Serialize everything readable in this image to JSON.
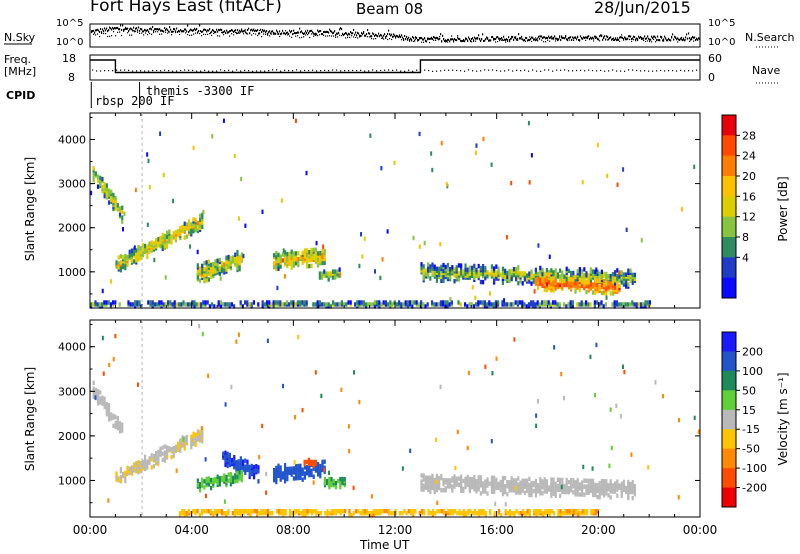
{
  "header": {
    "title": "Fort Hays East (fitACF)",
    "beam": "Beam 08",
    "date": "28/Jun/2015"
  },
  "top_panels": {
    "nsky_label": "N.Sky",
    "nsky_ticks": [
      "10^5",
      "10^0"
    ],
    "nsearch_label": "N.Search",
    "nsearch_ticks": [
      "10^5",
      "10^0"
    ],
    "freq_label": [
      "Freq.",
      "[MHz]"
    ],
    "freq_ticks": [
      "18",
      "8"
    ],
    "nave_label": "Nave",
    "nave_ticks": [
      "60",
      "0"
    ],
    "cpid_label": "CPID",
    "cpid_segments": [
      "rbsp 200 IF",
      "themis -3300 IF"
    ]
  },
  "axes": {
    "y_label": "Slant Range [km]",
    "y_ticks": [
      "4000",
      "3000",
      "2000",
      "1000"
    ],
    "x_ticks": [
      "00:00",
      "04:00",
      "08:00",
      "12:00",
      "16:00",
      "20:00",
      "00:00"
    ],
    "x_label": "Time UT"
  },
  "colorbars": {
    "power": {
      "label": "Power [dB]",
      "ticks": [
        "28",
        "24",
        "20",
        "16",
        "12",
        "8",
        "4"
      ],
      "colors": [
        "#e8000b",
        "#ff4a00",
        "#ff7e00",
        "#ffc000",
        "#dccf00",
        "#87c440",
        "#2e8c60",
        "#1e3cc8",
        "#0a0aff"
      ]
    },
    "velocity": {
      "label": "Velocity [m s⁻¹]",
      "ticks": [
        "200",
        "100",
        "50",
        "15",
        "-15",
        "-50",
        "-100",
        "-200"
      ],
      "colors": [
        "#1a1aff",
        "#2255cc",
        "#1d8a5a",
        "#5fd037",
        "#b9b9b9",
        "#ffc400",
        "#ff8a00",
        "#ff4d00",
        "#ee0000"
      ]
    }
  },
  "chart_data": [
    {
      "type": "line",
      "title": "N.Sky / N.Search",
      "x": [
        0,
        1,
        2,
        4,
        6,
        8,
        10,
        12,
        13,
        16,
        20,
        22,
        24
      ],
      "series": [
        {
          "name": "N.Sky",
          "values": [
            3.5,
            4.2,
            4.0,
            3.8,
            3.6,
            3.4,
            3.2,
            2.5,
            1.8,
            2.0,
            2.2,
            2.1,
            2.0
          ]
        },
        {
          "name": "N.Search",
          "values": [
            2.5,
            3.0,
            3.2,
            3.0,
            2.8,
            2.6,
            2.4,
            2.0,
            1.5,
            1.6,
            1.8,
            1.7,
            1.6
          ]
        }
      ],
      "ylim": [
        0,
        5
      ],
      "xlim": [
        0,
        24
      ]
    },
    {
      "type": "line",
      "title": "Freq. / Nave",
      "series": [
        {
          "name": "Freq.",
          "x": [
            0,
            1,
            1,
            13,
            13,
            24
          ],
          "values": [
            16,
            16,
            11,
            11,
            16,
            16
          ]
        },
        {
          "name": "Nave",
          "x": [
            0,
            24
          ],
          "values": [
            24,
            24
          ]
        }
      ],
      "ylim_freq": [
        8,
        18
      ],
      "ylim_nave": [
        0,
        60
      ],
      "xlim": [
        0,
        24
      ]
    },
    {
      "type": "heatmap",
      "title": "Power [dB]",
      "xlabel": "Time UT",
      "ylabel": "Slant Range [km]",
      "xlim": [
        0,
        24
      ],
      "ylim": [
        180,
        4600
      ],
      "clim": [
        0,
        30
      ],
      "features": [
        {
          "t0": 0.1,
          "t1": 1.3,
          "r0": 3300,
          "r1": 2300,
          "width": 350,
          "value": 15,
          "spread": 5
        },
        {
          "t0": 1.0,
          "t1": 4.4,
          "r0": 1200,
          "r1": 2200,
          "width": 330,
          "value": 17,
          "spread": 6
        },
        {
          "t0": 4.2,
          "t1": 6.0,
          "r0": 1000,
          "r1": 1350,
          "width": 420,
          "value": 16,
          "spread": 6
        },
        {
          "t0": 7.2,
          "t1": 9.2,
          "r0": 1300,
          "r1": 1400,
          "width": 380,
          "value": 18,
          "spread": 6
        },
        {
          "t0": 9.0,
          "t1": 9.8,
          "r0": 1000,
          "r1": 1000,
          "width": 250,
          "value": 12,
          "spread": 4
        },
        {
          "t0": 13.0,
          "t1": 21.4,
          "r0": 1050,
          "r1": 900,
          "width": 380,
          "value": 13,
          "spread": 6
        },
        {
          "t0": 17.5,
          "t1": 20.8,
          "r0": 800,
          "r1": 700,
          "width": 300,
          "value": 24,
          "spread": 4
        },
        {
          "t0": 0.0,
          "t1": 22.0,
          "r0": 320,
          "r1": 320,
          "width": 110,
          "value": 10,
          "spread": 6
        }
      ]
    },
    {
      "type": "heatmap",
      "title": "Velocity [m s⁻¹]",
      "xlabel": "Time UT",
      "ylabel": "Slant Range [km]",
      "xlim": [
        0,
        24
      ],
      "ylim": [
        180,
        4600
      ],
      "clim": [
        -200,
        200
      ],
      "features": [
        {
          "t0": 0.1,
          "t1": 1.3,
          "r0": 3100,
          "r1": 2100,
          "width": 350,
          "value": 0,
          "spread": 10
        },
        {
          "t0": 1.0,
          "t1": 4.4,
          "r0": 1100,
          "r1": 2100,
          "width": 330,
          "value": -10,
          "spread": 15
        },
        {
          "t0": 5.2,
          "t1": 6.6,
          "r0": 1600,
          "r1": 1200,
          "width": 350,
          "value": 180,
          "spread": 40
        },
        {
          "t0": 4.2,
          "t1": 6.0,
          "r0": 950,
          "r1": 1150,
          "width": 260,
          "value": 45,
          "spread": 15
        },
        {
          "t0": 7.2,
          "t1": 9.2,
          "r0": 1200,
          "r1": 1300,
          "width": 380,
          "value": 150,
          "spread": 50
        },
        {
          "t0": 8.4,
          "t1": 8.9,
          "r0": 1450,
          "r1": 1450,
          "width": 150,
          "value": -160,
          "spread": 30
        },
        {
          "t0": 9.2,
          "t1": 10.0,
          "r0": 1000,
          "r1": 1000,
          "width": 200,
          "value": 50,
          "spread": 10
        },
        {
          "t0": 13.0,
          "t1": 21.4,
          "r0": 1000,
          "r1": 850,
          "width": 400,
          "value": 0,
          "spread": 10
        },
        {
          "t0": 3.5,
          "t1": 20.0,
          "r0": 330,
          "r1": 330,
          "width": 120,
          "value": -40,
          "spread": 15
        }
      ]
    }
  ]
}
